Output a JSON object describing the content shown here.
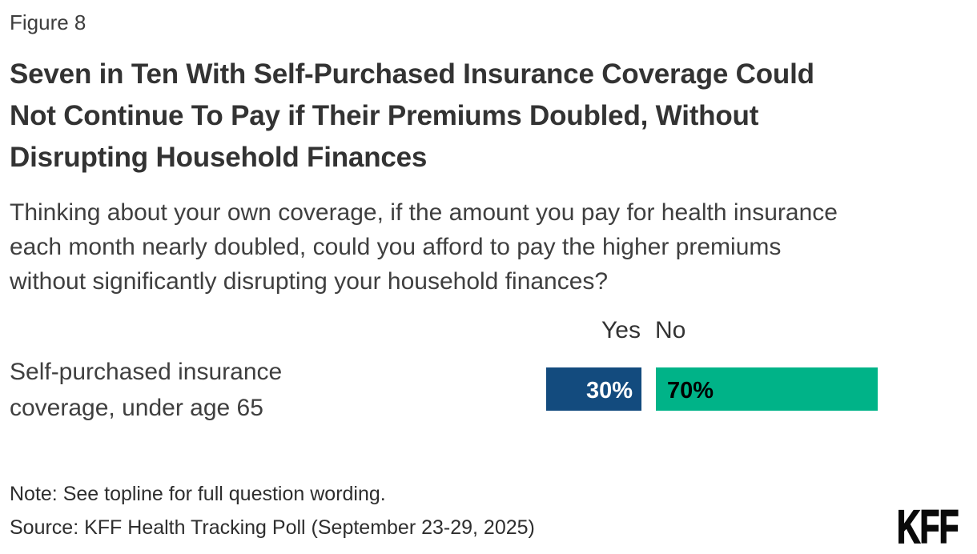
{
  "figure_label": "Figure 8",
  "title_lines": [
    "Seven in Ten With Self-Purchased Insurance Coverage Could",
    "Not Continue To Pay if Their Premiums Doubled, Without",
    "Disrupting Household Finances"
  ],
  "subtitle_lines": [
    "Thinking about your own coverage, if the amount you pay for health insurance",
    "each month nearly doubled, could you afford to pay the higher premiums",
    "without significantly disrupting your household finances?"
  ],
  "legend": {
    "yes_label": "Yes",
    "no_label": "No"
  },
  "row": {
    "label_lines": [
      "Self-purchased insurance",
      "coverage, under age 65"
    ]
  },
  "bars": {
    "yes_value_label": "30%",
    "no_value_label": "70%"
  },
  "note": "Note: See topline for full question wording.",
  "source": "Source: KFF Health Tracking Poll (September 23-29, 2025)",
  "logo_text": "KFF",
  "colors": {
    "yes_bar": "#134b7e",
    "no_bar": "#00b388",
    "title_text": "#333333",
    "body_text": "#3f3f3f",
    "yes_value_text": "#ffffff",
    "no_value_text": "#000000"
  },
  "chart_data": {
    "type": "bar",
    "orientation": "horizontal",
    "title": "Seven in Ten With Self-Purchased Insurance Coverage Could Not Continue To Pay if Their Premiums Doubled, Without Disrupting Household Finances",
    "subtitle": "Thinking about your own coverage, if the amount you pay for health insurance each month nearly doubled, could you afford to pay the higher premiums without significantly disrupting your household finances?",
    "categories": [
      "Self-purchased insurance coverage, under age 65"
    ],
    "series": [
      {
        "name": "Yes",
        "values": [
          30
        ],
        "color": "#134b7e"
      },
      {
        "name": "No",
        "values": [
          70
        ],
        "color": "#00b388"
      }
    ],
    "value_unit": "percent",
    "data_labels": [
      "30%",
      "70%"
    ],
    "legend_position": "top",
    "grid": false,
    "axis_visible": false
  }
}
